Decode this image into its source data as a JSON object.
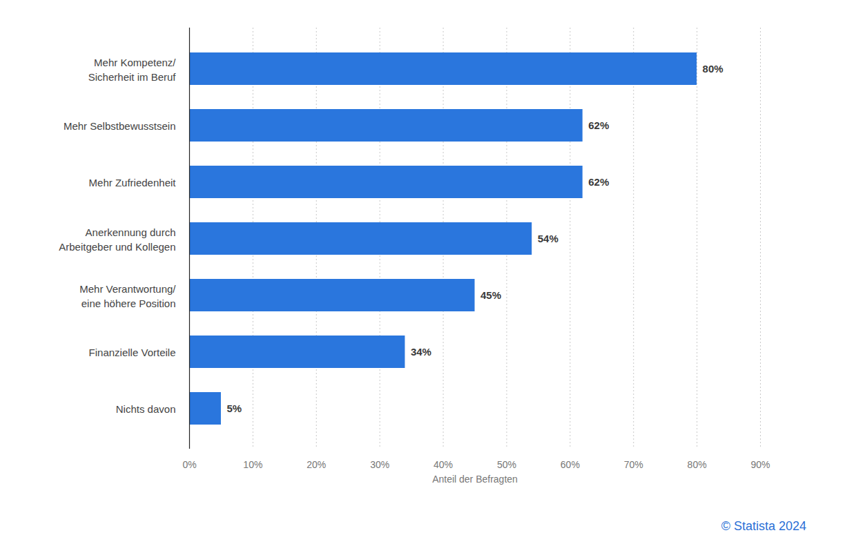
{
  "chart_data": {
    "type": "bar",
    "orientation": "horizontal",
    "categories": [
      "Mehr Kompetenz/\nSicherheit im Beruf",
      "Mehr Selbstbewusstsein",
      "Mehr Zufriedenheit",
      "Anerkennung durch\nArbeitgeber und Kollegen",
      "Mehr Verantwortung/\neine höhere Position",
      "Finanzielle Vorteile",
      "Nichts davon"
    ],
    "values": [
      80,
      62,
      62,
      54,
      45,
      34,
      5
    ],
    "value_labels": [
      "80%",
      "62%",
      "62%",
      "54%",
      "45%",
      "34%",
      "5%"
    ],
    "color": "#2a76dd",
    "x_label": "Anteil der Befragten",
    "xlim": [
      0,
      90
    ],
    "xticks": [
      {
        "value": 0,
        "label": "0%"
      },
      {
        "value": 10,
        "label": "10%"
      },
      {
        "value": 20,
        "label": "20%"
      },
      {
        "value": 30,
        "label": "30%"
      },
      {
        "value": 40,
        "label": "40%"
      },
      {
        "value": 50,
        "label": "50%"
      },
      {
        "value": 60,
        "label": "60%"
      },
      {
        "value": 70,
        "label": "70%"
      },
      {
        "value": 80,
        "label": "80%"
      },
      {
        "value": 90,
        "label": "90%"
      }
    ],
    "grid": true,
    "data_labels": true,
    "caption": "© Statista 2024"
  }
}
